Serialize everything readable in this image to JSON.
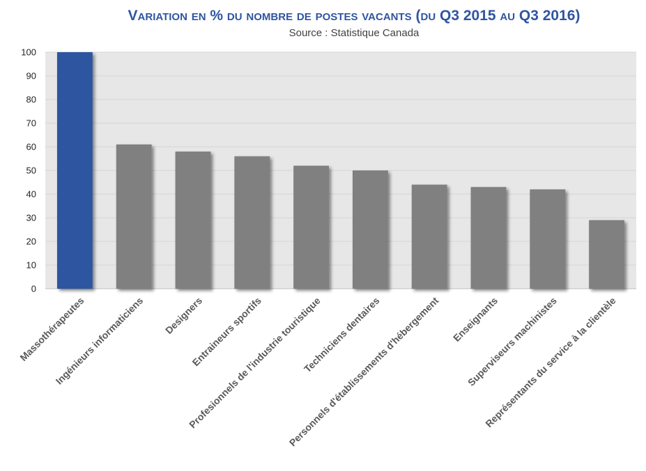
{
  "chart_data": {
    "type": "bar",
    "title": "Variation en % du nombre de postes vacants (du Q3 2015 au Q3 2016)",
    "subtitle": "Source : Statistique Canada",
    "xlabel": "",
    "ylabel": "",
    "ylim": [
      0,
      100
    ],
    "yticks": [
      0,
      10,
      20,
      30,
      40,
      50,
      60,
      70,
      80,
      90,
      100
    ],
    "grid": true,
    "legend": "none",
    "categories": [
      "Massothérapeutes",
      "Ingénieurs informaticiens",
      "Designers",
      "Entraineurs sportifs",
      "Profesionnels de l'industrie touristique",
      "Techniciens dentaires",
      "Personnels d'établissements d'hébergement",
      "Enseignants",
      "Superviseurs machinistes",
      "Représentants du service à la clientèle"
    ],
    "values": [
      100,
      61,
      58,
      56,
      52,
      50,
      44,
      43,
      42,
      29
    ],
    "colors": {
      "highlight": "#2f55a0",
      "bar": "#808080",
      "plot_bg": "#e7e7e7",
      "grid": "#d4d4d4"
    }
  }
}
